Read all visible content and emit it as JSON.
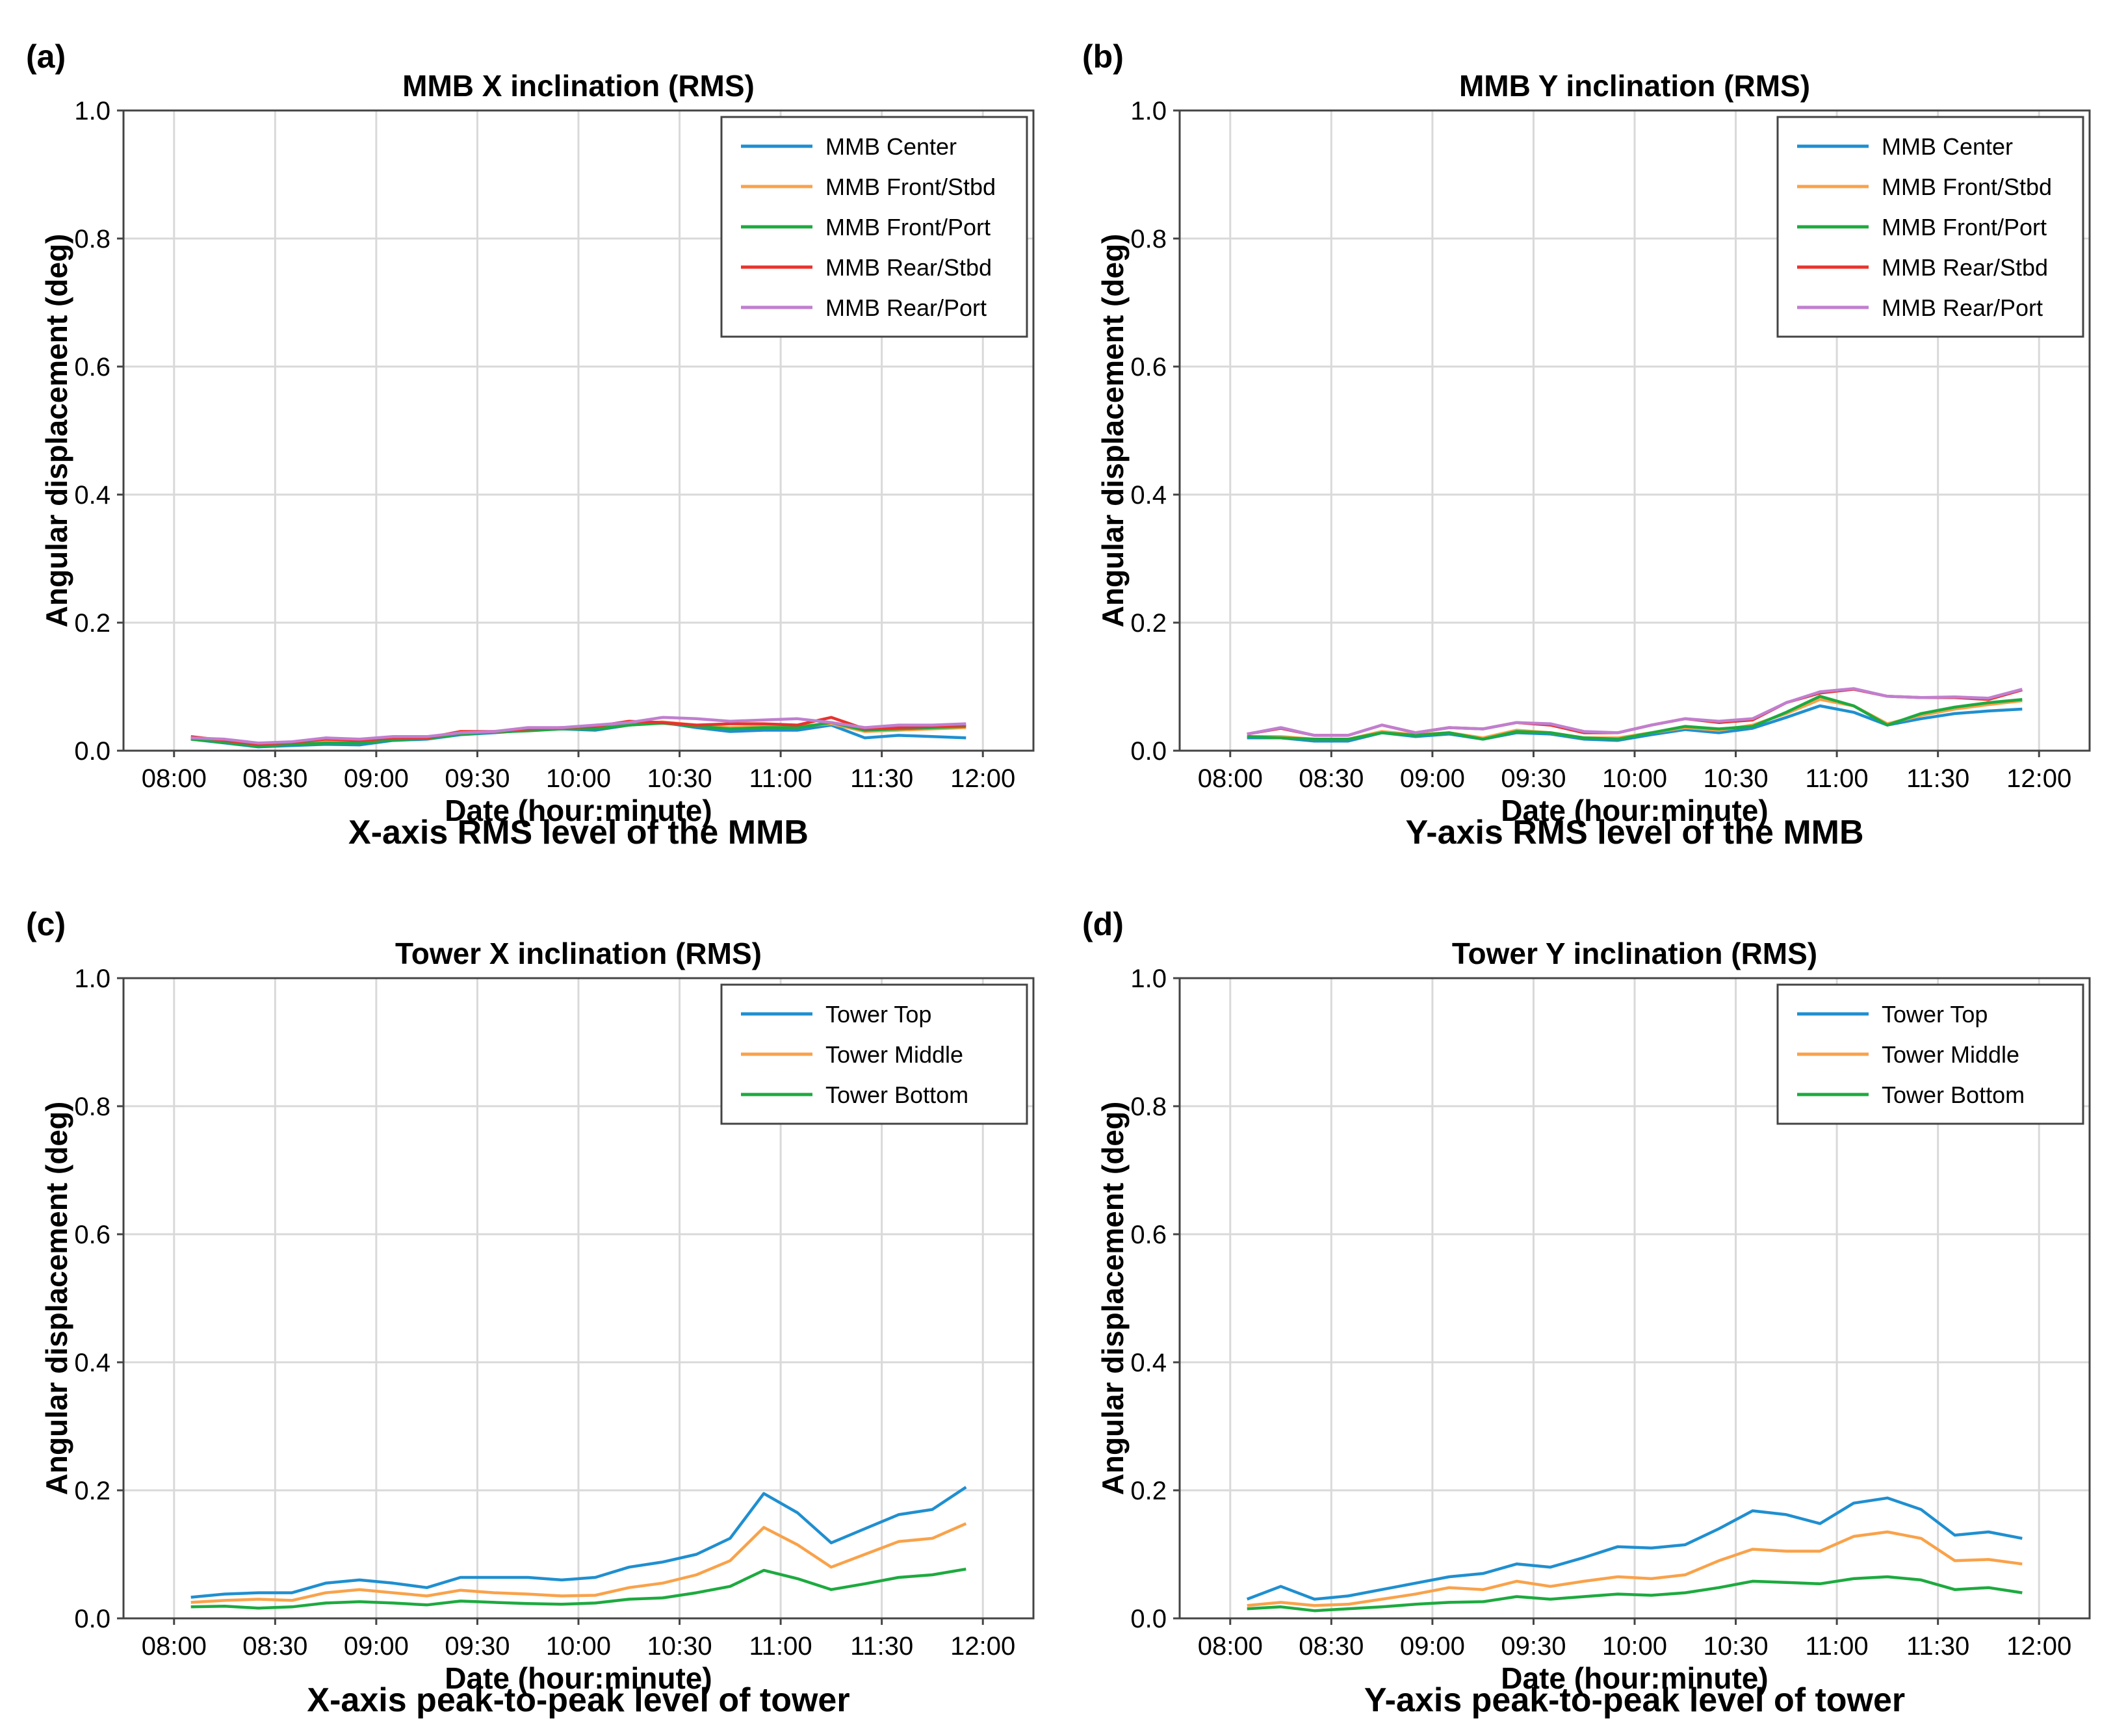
{
  "colors": {
    "blue": "#1f8fd0",
    "orange": "#f9a24a",
    "green": "#1daa3f",
    "red": "#e8332e",
    "purple": "#c07fd0",
    "grid": "#d9d9d9",
    "axis": "#444444"
  },
  "chart_data": [
    {
      "letter": "(a)",
      "type": "line",
      "title": "MMB X inclination (RMS)",
      "xlabel": "Date (hour:minute)",
      "ylabel": "Angular displacement (deg)",
      "caption": "X-axis RMS level of the MMB",
      "xlim": [
        -15,
        255
      ],
      "ylim": [
        0,
        1.0
      ],
      "xticks": [
        0,
        30,
        60,
        90,
        120,
        150,
        180,
        210,
        240
      ],
      "xtick_labels": [
        "08:00",
        "08:30",
        "09:00",
        "09:30",
        "10:00",
        "10:30",
        "11:00",
        "11:30",
        "12:00"
      ],
      "yticks": [
        0,
        0.2,
        0.4,
        0.6,
        0.8,
        1.0
      ],
      "ytick_labels": [
        "0.0",
        "0.2",
        "0.4",
        "0.6",
        "0.8",
        "1.0"
      ],
      "grid": true,
      "legend_position": "top-right",
      "x": [
        5,
        15,
        25,
        35,
        45,
        55,
        65,
        75,
        85,
        95,
        105,
        115,
        125,
        135,
        145,
        155,
        165,
        175,
        185,
        195,
        205,
        215,
        225,
        235
      ],
      "series": [
        {
          "name": "MMB Center",
          "color": "blue",
          "values": [
            0.018,
            0.012,
            0.006,
            0.008,
            0.01,
            0.009,
            0.016,
            0.018,
            0.025,
            0.028,
            0.032,
            0.034,
            0.032,
            0.04,
            0.044,
            0.036,
            0.03,
            0.032,
            0.032,
            0.04,
            0.02,
            0.024,
            0.022,
            0.02
          ]
        },
        {
          "name": "MMB Front/Stbd",
          "color": "orange",
          "values": [
            0.02,
            0.015,
            0.008,
            0.011,
            0.014,
            0.013,
            0.018,
            0.02,
            0.028,
            0.03,
            0.033,
            0.035,
            0.036,
            0.042,
            0.045,
            0.04,
            0.036,
            0.038,
            0.038,
            0.042,
            0.03,
            0.032,
            0.034,
            0.036
          ]
        },
        {
          "name": "MMB Front/Port",
          "color": "green",
          "values": [
            0.018,
            0.013,
            0.007,
            0.01,
            0.012,
            0.012,
            0.017,
            0.019,
            0.026,
            0.029,
            0.031,
            0.034,
            0.034,
            0.04,
            0.043,
            0.038,
            0.034,
            0.036,
            0.036,
            0.044,
            0.032,
            0.034,
            0.036,
            0.038
          ]
        },
        {
          "name": "MMB Rear/Stbd",
          "color": "red",
          "values": [
            0.022,
            0.016,
            0.01,
            0.013,
            0.018,
            0.016,
            0.02,
            0.02,
            0.03,
            0.03,
            0.034,
            0.036,
            0.038,
            0.046,
            0.044,
            0.04,
            0.042,
            0.042,
            0.04,
            0.052,
            0.034,
            0.036,
            0.038,
            0.04
          ]
        },
        {
          "name": "MMB Rear/Port",
          "color": "purple",
          "values": [
            0.02,
            0.018,
            0.012,
            0.014,
            0.02,
            0.018,
            0.022,
            0.022,
            0.028,
            0.03,
            0.036,
            0.036,
            0.04,
            0.044,
            0.052,
            0.05,
            0.046,
            0.048,
            0.05,
            0.044,
            0.036,
            0.04,
            0.04,
            0.042
          ]
        }
      ]
    },
    {
      "letter": "(b)",
      "type": "line",
      "title": "MMB Y inclination (RMS)",
      "xlabel": "Date (hour:minute)",
      "ylabel": "Angular displacement (deg)",
      "caption": "Y-axis RMS level of the MMB",
      "xlim": [
        -15,
        255
      ],
      "ylim": [
        0,
        1.0
      ],
      "xticks": [
        0,
        30,
        60,
        90,
        120,
        150,
        180,
        210,
        240
      ],
      "xtick_labels": [
        "08:00",
        "08:30",
        "09:00",
        "09:30",
        "10:00",
        "10:30",
        "11:00",
        "11:30",
        "12:00"
      ],
      "yticks": [
        0,
        0.2,
        0.4,
        0.6,
        0.8,
        1.0
      ],
      "ytick_labels": [
        "0.0",
        "0.2",
        "0.4",
        "0.6",
        "0.8",
        "1.0"
      ],
      "grid": true,
      "legend_position": "top-right",
      "x": [
        5,
        15,
        25,
        35,
        45,
        55,
        65,
        75,
        85,
        95,
        105,
        115,
        125,
        135,
        145,
        155,
        165,
        175,
        185,
        195,
        205,
        215,
        225,
        235
      ],
      "series": [
        {
          "name": "MMB Center",
          "color": "blue",
          "values": [
            0.02,
            0.02,
            0.015,
            0.015,
            0.028,
            0.022,
            0.026,
            0.018,
            0.028,
            0.026,
            0.018,
            0.016,
            0.025,
            0.033,
            0.028,
            0.035,
            0.052,
            0.07,
            0.06,
            0.04,
            0.05,
            0.058,
            0.062,
            0.065
          ]
        },
        {
          "name": "MMB Front/Stbd",
          "color": "orange",
          "values": [
            0.022,
            0.022,
            0.018,
            0.018,
            0.03,
            0.025,
            0.028,
            0.02,
            0.032,
            0.028,
            0.02,
            0.02,
            0.028,
            0.036,
            0.032,
            0.04,
            0.058,
            0.08,
            0.07,
            0.042,
            0.055,
            0.065,
            0.072,
            0.078
          ]
        },
        {
          "name": "MMB Front/Port",
          "color": "green",
          "values": [
            0.022,
            0.02,
            0.018,
            0.018,
            0.028,
            0.024,
            0.028,
            0.018,
            0.03,
            0.028,
            0.02,
            0.018,
            0.028,
            0.038,
            0.034,
            0.038,
            0.06,
            0.085,
            0.07,
            0.04,
            0.058,
            0.068,
            0.075,
            0.08
          ]
        },
        {
          "name": "MMB Rear/Stbd",
          "color": "red",
          "values": [
            0.026,
            0.035,
            0.024,
            0.024,
            0.04,
            0.028,
            0.036,
            0.034,
            0.044,
            0.04,
            0.028,
            0.028,
            0.04,
            0.05,
            0.044,
            0.048,
            0.075,
            0.09,
            0.096,
            0.085,
            0.083,
            0.083,
            0.08,
            0.095
          ]
        },
        {
          "name": "MMB Rear/Port",
          "color": "purple",
          "values": [
            0.026,
            0.036,
            0.024,
            0.024,
            0.04,
            0.028,
            0.036,
            0.034,
            0.044,
            0.042,
            0.03,
            0.028,
            0.04,
            0.05,
            0.046,
            0.05,
            0.075,
            0.092,
            0.097,
            0.085,
            0.083,
            0.084,
            0.082,
            0.096
          ]
        }
      ]
    },
    {
      "letter": "(c)",
      "type": "line",
      "title": "Tower X inclination (RMS)",
      "xlabel": "Date (hour:minute)",
      "ylabel": "Angular displacement (deg)",
      "caption": "X-axis peak-to-peak level of tower",
      "xlim": [
        -15,
        255
      ],
      "ylim": [
        0,
        1.0
      ],
      "xticks": [
        0,
        30,
        60,
        90,
        120,
        150,
        180,
        210,
        240
      ],
      "xtick_labels": [
        "08:00",
        "08:30",
        "09:00",
        "09:30",
        "10:00",
        "10:30",
        "11:00",
        "11:30",
        "12:00"
      ],
      "yticks": [
        0,
        0.2,
        0.4,
        0.6,
        0.8,
        1.0
      ],
      "ytick_labels": [
        "0.0",
        "0.2",
        "0.4",
        "0.6",
        "0.8",
        "1.0"
      ],
      "grid": true,
      "legend_position": "top-right",
      "x": [
        5,
        15,
        25,
        35,
        45,
        55,
        65,
        75,
        85,
        95,
        105,
        115,
        125,
        135,
        145,
        155,
        165,
        175,
        185,
        195,
        205,
        215,
        225,
        235
      ],
      "series": [
        {
          "name": "Tower Top",
          "color": "blue",
          "values": [
            0.033,
            0.038,
            0.04,
            0.04,
            0.055,
            0.06,
            0.055,
            0.048,
            0.064,
            0.064,
            0.064,
            0.06,
            0.064,
            0.08,
            0.088,
            0.1,
            0.125,
            0.195,
            0.165,
            0.118,
            0.14,
            0.162,
            0.17,
            0.205
          ]
        },
        {
          "name": "Tower Middle",
          "color": "orange",
          "values": [
            0.025,
            0.028,
            0.03,
            0.028,
            0.04,
            0.045,
            0.04,
            0.035,
            0.044,
            0.04,
            0.038,
            0.035,
            0.036,
            0.048,
            0.055,
            0.068,
            0.09,
            0.142,
            0.115,
            0.08,
            0.1,
            0.12,
            0.125,
            0.148
          ]
        },
        {
          "name": "Tower Bottom",
          "color": "green",
          "values": [
            0.018,
            0.019,
            0.016,
            0.018,
            0.024,
            0.026,
            0.024,
            0.021,
            0.027,
            0.025,
            0.023,
            0.022,
            0.024,
            0.03,
            0.032,
            0.04,
            0.05,
            0.075,
            0.062,
            0.045,
            0.054,
            0.064,
            0.068,
            0.077
          ]
        }
      ]
    },
    {
      "letter": "(d)",
      "type": "line",
      "title": "Tower Y inclination (RMS)",
      "xlabel": "Date (hour:minute)",
      "ylabel": "Angular displacement (deg)",
      "caption": "Y-axis peak-to-peak level of tower",
      "xlim": [
        -15,
        255
      ],
      "ylim": [
        0,
        1.0
      ],
      "xticks": [
        0,
        30,
        60,
        90,
        120,
        150,
        180,
        210,
        240
      ],
      "xtick_labels": [
        "08:00",
        "08:30",
        "09:00",
        "09:30",
        "10:00",
        "10:30",
        "11:00",
        "11:30",
        "12:00"
      ],
      "yticks": [
        0,
        0.2,
        0.4,
        0.6,
        0.8,
        1.0
      ],
      "ytick_labels": [
        "0.0",
        "0.2",
        "0.4",
        "0.6",
        "0.8",
        "1.0"
      ],
      "grid": true,
      "legend_position": "top-right",
      "x": [
        5,
        15,
        25,
        35,
        45,
        55,
        65,
        75,
        85,
        95,
        105,
        115,
        125,
        135,
        145,
        155,
        165,
        175,
        185,
        195,
        205,
        215,
        225,
        235
      ],
      "series": [
        {
          "name": "Tower Top",
          "color": "blue",
          "values": [
            0.03,
            0.05,
            0.03,
            0.035,
            0.045,
            0.055,
            0.065,
            0.07,
            0.085,
            0.08,
            0.095,
            0.112,
            0.11,
            0.115,
            0.14,
            0.168,
            0.162,
            0.148,
            0.18,
            0.188,
            0.17,
            0.13,
            0.135,
            0.125
          ]
        },
        {
          "name": "Tower Middle",
          "color": "orange",
          "values": [
            0.02,
            0.025,
            0.02,
            0.022,
            0.03,
            0.038,
            0.048,
            0.045,
            0.058,
            0.05,
            0.058,
            0.065,
            0.062,
            0.068,
            0.09,
            0.108,
            0.105,
            0.105,
            0.128,
            0.135,
            0.125,
            0.09,
            0.092,
            0.085
          ]
        },
        {
          "name": "Tower Bottom",
          "color": "green",
          "values": [
            0.015,
            0.018,
            0.012,
            0.015,
            0.018,
            0.022,
            0.025,
            0.026,
            0.034,
            0.03,
            0.034,
            0.038,
            0.036,
            0.04,
            0.048,
            0.058,
            0.056,
            0.054,
            0.062,
            0.065,
            0.06,
            0.045,
            0.048,
            0.04
          ]
        }
      ]
    }
  ]
}
